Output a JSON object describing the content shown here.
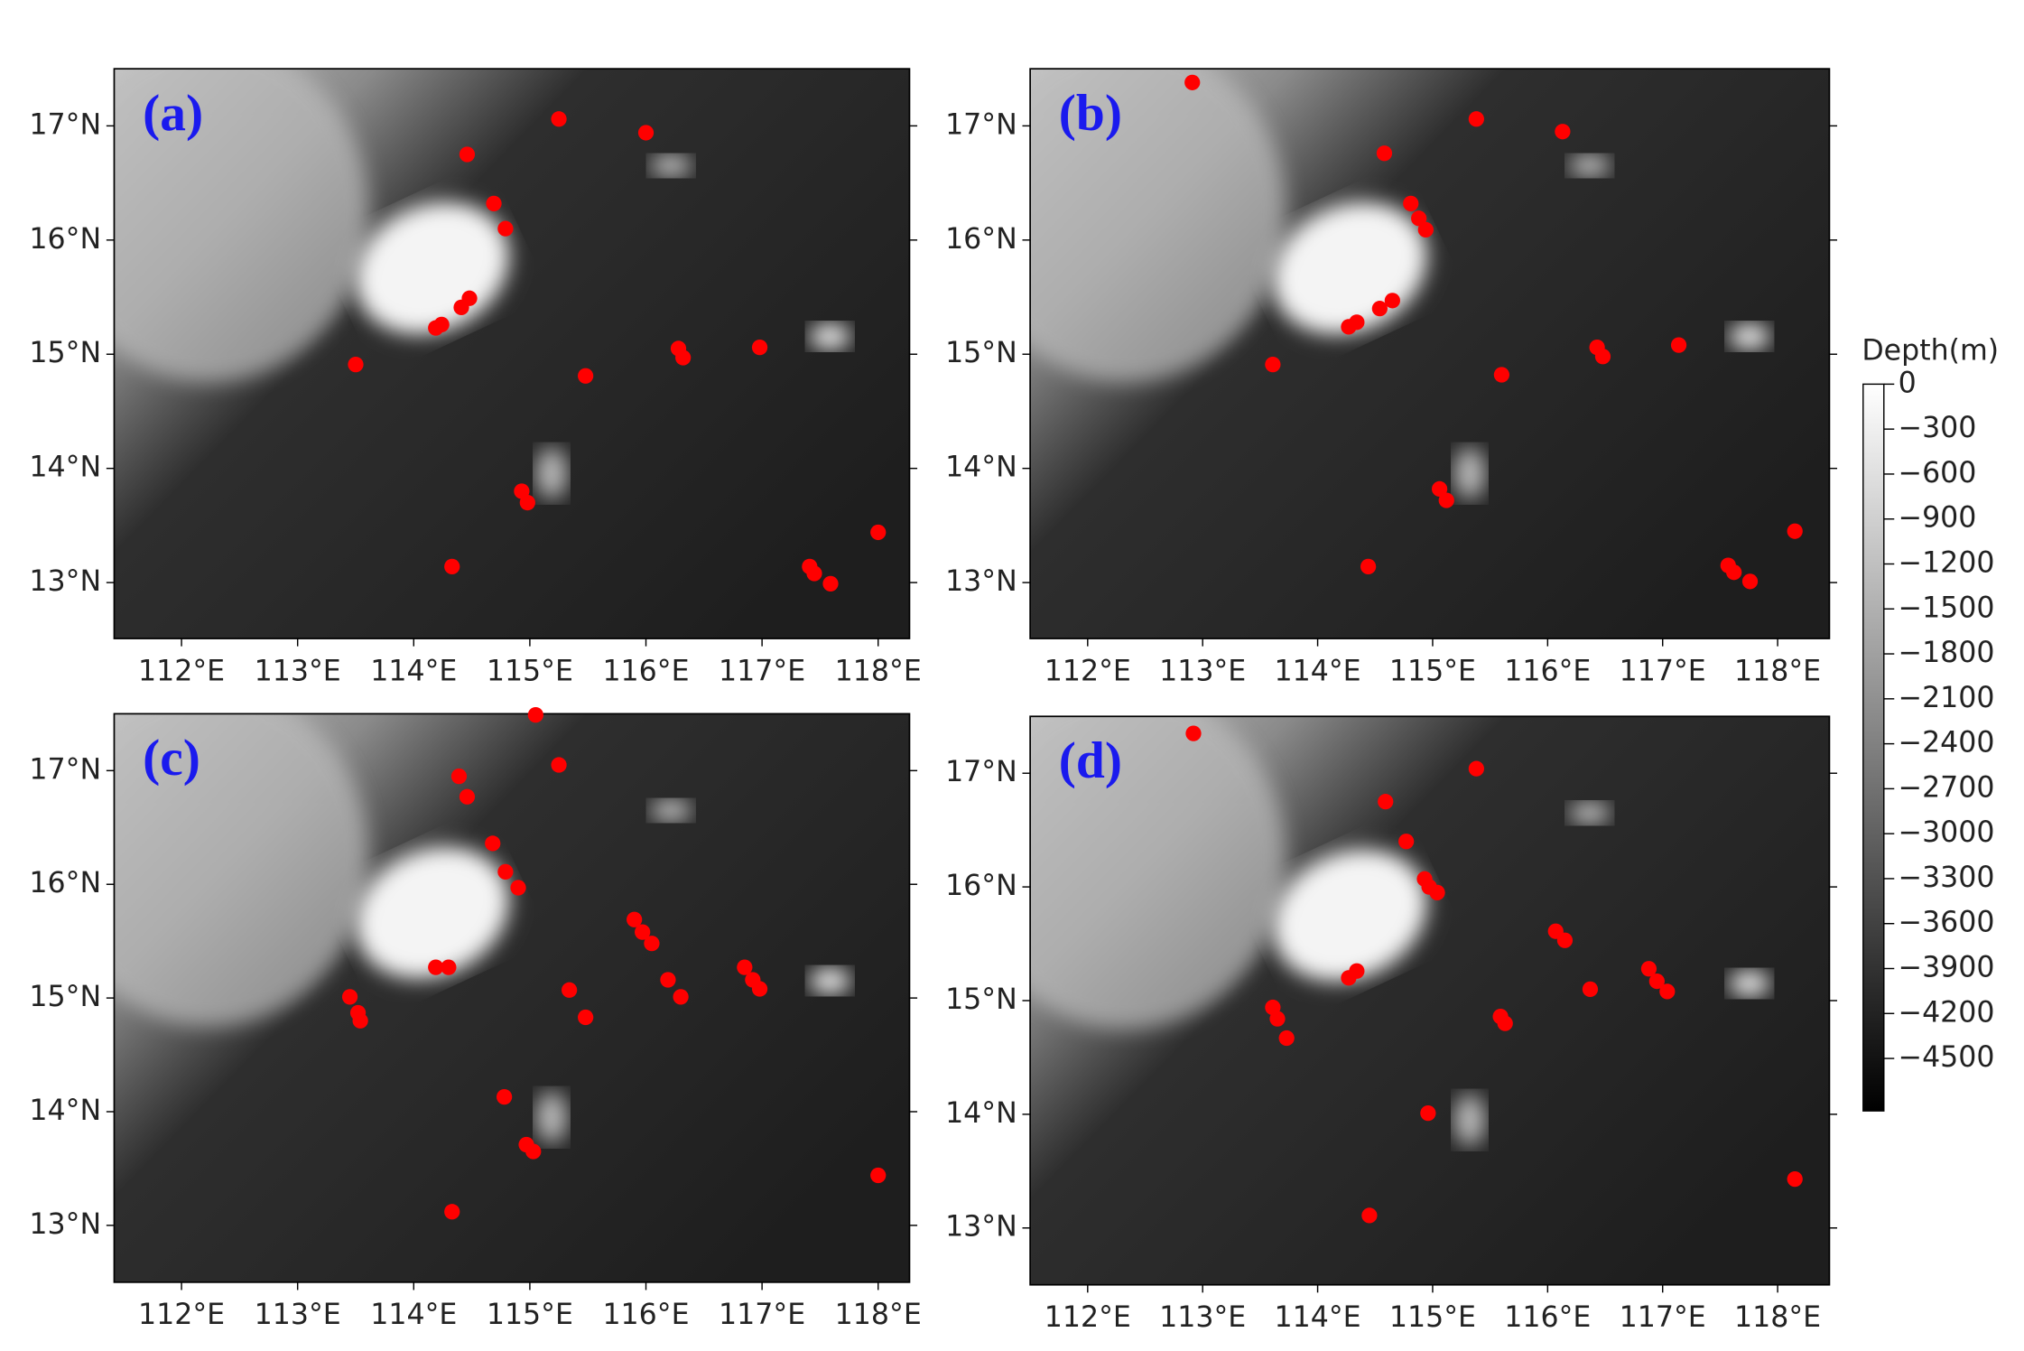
{
  "chart_data": [
    {
      "type": "scatter",
      "title": "(a)",
      "color": "#ff0000",
      "x": [
        115.25,
        116.0,
        114.46,
        114.69,
        114.79,
        114.48,
        114.41,
        114.24,
        114.19,
        113.5,
        115.48,
        116.28,
        116.32,
        116.98,
        114.93,
        114.98,
        114.33,
        117.41,
        117.45,
        117.59,
        118.0
      ],
      "y": [
        17.06,
        16.94,
        16.75,
        16.32,
        16.1,
        15.49,
        15.41,
        15.26,
        15.23,
        14.91,
        14.81,
        15.05,
        14.97,
        15.06,
        13.8,
        13.7,
        13.14,
        13.14,
        13.08,
        12.99,
        13.44
      ],
      "xlim": [
        111.42,
        118.27
      ],
      "ylim": [
        12.51,
        17.5
      ],
      "xticks": [
        {
          "value": 112,
          "label": "112°E"
        },
        {
          "value": 113,
          "label": "113°E"
        },
        {
          "value": 114,
          "label": "114°E"
        },
        {
          "value": 115,
          "label": "115°E"
        },
        {
          "value": 116,
          "label": "116°E"
        },
        {
          "value": 117,
          "label": "117°E"
        },
        {
          "value": 118,
          "label": "118°E"
        }
      ],
      "yticks": [
        {
          "value": 13,
          "label": "13°N"
        },
        {
          "value": 14,
          "label": "14°N"
        },
        {
          "value": 15,
          "label": "15°N"
        },
        {
          "value": 16,
          "label": "16°N"
        },
        {
          "value": 17,
          "label": "17°N"
        }
      ]
    },
    {
      "type": "scatter",
      "title": "(b)",
      "color": "#ff0000",
      "x": [
        112.91,
        115.38,
        116.13,
        114.58,
        114.81,
        114.88,
        114.94,
        114.65,
        114.54,
        114.34,
        114.27,
        113.61,
        115.6,
        116.43,
        116.48,
        117.14,
        115.06,
        115.12,
        114.44,
        117.57,
        117.62,
        117.76,
        118.15
      ],
      "y": [
        17.38,
        17.06,
        16.95,
        16.76,
        16.32,
        16.19,
        16.09,
        15.47,
        15.4,
        15.28,
        15.24,
        14.91,
        14.82,
        15.06,
        14.98,
        15.08,
        13.82,
        13.72,
        13.14,
        13.15,
        13.09,
        13.01,
        13.45
      ],
      "xlim": [
        111.5,
        118.45
      ],
      "ylim": [
        12.51,
        17.5
      ],
      "xticks": [
        {
          "value": 112,
          "label": "112°E"
        },
        {
          "value": 113,
          "label": "113°E"
        },
        {
          "value": 114,
          "label": "114°E"
        },
        {
          "value": 115,
          "label": "115°E"
        },
        {
          "value": 116,
          "label": "116°E"
        },
        {
          "value": 117,
          "label": "117°E"
        },
        {
          "value": 118,
          "label": "118°E"
        }
      ],
      "yticks": [
        {
          "value": 13,
          "label": "13°N"
        },
        {
          "value": 14,
          "label": "14°N"
        },
        {
          "value": 15,
          "label": "15°N"
        },
        {
          "value": 16,
          "label": "16°N"
        },
        {
          "value": 17,
          "label": "17°N"
        }
      ]
    },
    {
      "type": "scatter",
      "title": "(c)",
      "color": "#ff0000",
      "x": [
        115.05,
        115.25,
        114.39,
        114.46,
        114.68,
        114.79,
        114.9,
        114.19,
        114.3,
        113.45,
        113.52,
        113.54,
        115.9,
        115.97,
        116.05,
        115.34,
        115.48,
        116.19,
        116.3,
        116.85,
        116.92,
        116.98,
        114.78,
        114.97,
        115.03,
        114.33,
        118.0
      ],
      "y": [
        17.49,
        17.05,
        16.95,
        16.77,
        16.36,
        16.11,
        15.97,
        15.27,
        15.27,
        15.01,
        14.87,
        14.8,
        15.69,
        15.58,
        15.48,
        15.07,
        14.83,
        15.16,
        15.01,
        15.27,
        15.16,
        15.08,
        14.13,
        13.71,
        13.65,
        13.12,
        13.44
      ],
      "xlim": [
        111.42,
        118.27
      ],
      "ylim": [
        12.5,
        17.5
      ],
      "xticks": [
        {
          "value": 112,
          "label": "112°E"
        },
        {
          "value": 113,
          "label": "113°E"
        },
        {
          "value": 114,
          "label": "114°E"
        },
        {
          "value": 115,
          "label": "115°E"
        },
        {
          "value": 116,
          "label": "116°E"
        },
        {
          "value": 117,
          "label": "117°E"
        },
        {
          "value": 118,
          "label": "118°E"
        }
      ],
      "yticks": [
        {
          "value": 13,
          "label": "13°N"
        },
        {
          "value": 14,
          "label": "14°N"
        },
        {
          "value": 15,
          "label": "15°N"
        },
        {
          "value": 16,
          "label": "16°N"
        },
        {
          "value": 17,
          "label": "17°N"
        }
      ]
    },
    {
      "type": "scatter",
      "title": "(d)",
      "color": "#ff0000",
      "x": [
        112.92,
        115.38,
        114.59,
        114.77,
        114.93,
        114.97,
        115.04,
        116.07,
        116.15,
        114.34,
        114.27,
        113.61,
        113.65,
        113.73,
        116.37,
        115.59,
        115.63,
        116.88,
        116.95,
        117.04,
        114.96,
        114.45,
        118.15
      ],
      "y": [
        17.35,
        17.04,
        16.75,
        16.4,
        16.07,
        16.0,
        15.95,
        15.61,
        15.53,
        15.26,
        15.2,
        14.94,
        14.84,
        14.67,
        15.1,
        14.86,
        14.8,
        15.28,
        15.17,
        15.08,
        14.01,
        13.11,
        13.43
      ],
      "xlim": [
        111.5,
        118.45
      ],
      "ylim": [
        12.5,
        17.5
      ],
      "xticks": [
        {
          "value": 112,
          "label": "112°E"
        },
        {
          "value": 113,
          "label": "113°E"
        },
        {
          "value": 114,
          "label": "114°E"
        },
        {
          "value": 115,
          "label": "115°E"
        },
        {
          "value": 116,
          "label": "116°E"
        },
        {
          "value": 117,
          "label": "117°E"
        },
        {
          "value": 118,
          "label": "118°E"
        }
      ],
      "yticks": [
        {
          "value": 13,
          "label": "13°N"
        },
        {
          "value": 14,
          "label": "14°N"
        },
        {
          "value": 15,
          "label": "15°N"
        },
        {
          "value": 16,
          "label": "16°N"
        },
        {
          "value": 17,
          "label": "17°N"
        }
      ]
    }
  ],
  "colorbar": {
    "label": "Depth(m)",
    "lim": [
      -4850,
      0
    ],
    "ticks": [
      0,
      {
        "value": -300,
        "label": "−300"
      },
      {
        "value": -600,
        "label": "−600"
      },
      {
        "value": -900,
        "label": "−900"
      },
      {
        "value": -1200,
        "label": "−1200"
      },
      {
        "value": -1500,
        "label": "−1500"
      },
      {
        "value": -1800,
        "label": "−1800"
      },
      {
        "value": -2100,
        "label": "−2100"
      },
      {
        "value": -2400,
        "label": "−2400"
      },
      {
        "value": -2700,
        "label": "−2700"
      },
      {
        "value": -3000,
        "label": "−3000"
      },
      {
        "value": -3300,
        "label": "−3300"
      },
      {
        "value": -3600,
        "label": "−3600"
      },
      {
        "value": -3900,
        "label": "−3900"
      },
      {
        "value": -4200,
        "label": "−4200"
      },
      {
        "value": -4500,
        "label": "−4500"
      }
    ]
  }
}
